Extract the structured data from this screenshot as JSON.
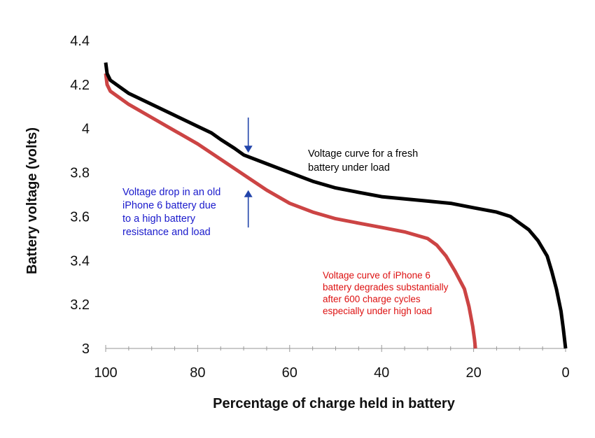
{
  "chart_data": {
    "type": "line",
    "title": "",
    "xlabel": "Percentage of charge held in battery",
    "ylabel": "Battery voltage (volts)",
    "xlim": [
      100,
      0
    ],
    "ylim": [
      3,
      4.4
    ],
    "x_ticks": [
      100,
      80,
      60,
      40,
      20,
      0
    ],
    "x_tick_labels": [
      "100",
      "80",
      "60",
      "40",
      "20",
      "0"
    ],
    "y_ticks": [
      3,
      3.2,
      3.4,
      3.6,
      3.8,
      4,
      4.2,
      4.4
    ],
    "y_tick_labels": [
      "3",
      "3.2",
      "3.4",
      "3.6",
      "3.8",
      "4",
      "4.2",
      "4.4"
    ],
    "grid": false,
    "series": [
      {
        "name": "Voltage curve for a fresh battery under load",
        "color": "#000000",
        "points": [
          [
            100,
            4.3
          ],
          [
            99.7,
            4.25
          ],
          [
            99,
            4.22
          ],
          [
            97,
            4.19
          ],
          [
            95,
            4.16
          ],
          [
            90,
            4.11
          ],
          [
            85,
            4.06
          ],
          [
            80,
            4.01
          ],
          [
            77,
            3.98
          ],
          [
            75,
            3.95
          ],
          [
            72,
            3.91
          ],
          [
            70,
            3.88
          ],
          [
            65,
            3.84
          ],
          [
            60,
            3.8
          ],
          [
            55,
            3.76
          ],
          [
            50,
            3.73
          ],
          [
            45,
            3.71
          ],
          [
            40,
            3.69
          ],
          [
            35,
            3.68
          ],
          [
            30,
            3.67
          ],
          [
            25,
            3.66
          ],
          [
            20,
            3.64
          ],
          [
            15,
            3.62
          ],
          [
            12,
            3.6
          ],
          [
            10,
            3.57
          ],
          [
            8,
            3.54
          ],
          [
            6,
            3.49
          ],
          [
            4,
            3.42
          ],
          [
            3,
            3.35
          ],
          [
            2,
            3.27
          ],
          [
            1,
            3.17
          ],
          [
            0.5,
            3.09
          ],
          [
            0,
            3.0
          ]
        ]
      },
      {
        "name": "Voltage curve of iPhone 6 battery degrades substantially after 600 charge cycles especially under high load",
        "color": "#cc4444",
        "points": [
          [
            100,
            4.25
          ],
          [
            99.7,
            4.2
          ],
          [
            99,
            4.17
          ],
          [
            97,
            4.14
          ],
          [
            95,
            4.11
          ],
          [
            90,
            4.05
          ],
          [
            85,
            3.99
          ],
          [
            80,
            3.93
          ],
          [
            75,
            3.86
          ],
          [
            70,
            3.79
          ],
          [
            65,
            3.72
          ],
          [
            60,
            3.66
          ],
          [
            55,
            3.62
          ],
          [
            50,
            3.59
          ],
          [
            45,
            3.57
          ],
          [
            40,
            3.55
          ],
          [
            35,
            3.53
          ],
          [
            30,
            3.5
          ],
          [
            28,
            3.47
          ],
          [
            26,
            3.42
          ],
          [
            24,
            3.35
          ],
          [
            22,
            3.27
          ],
          [
            21,
            3.19
          ],
          [
            20.2,
            3.1
          ],
          [
            19.8,
            3.04
          ],
          [
            19.6,
            3.0
          ]
        ]
      }
    ],
    "annotations": [
      {
        "text": "Voltage curve for a fresh battery under load",
        "lines": [
          "Voltage curve for a fresh",
          "battery under load"
        ],
        "color": "#000000"
      },
      {
        "text": "Voltage drop in an old iPhone 6 battery due to a high battery resistance and load",
        "lines": [
          "Voltage drop in an old",
          "iPhone 6 battery due",
          "to a high battery",
          "resistance and load"
        ],
        "color": "#1a1acc"
      },
      {
        "text": "Voltage curve of iPhone 6 battery degrades substantially after 600 charge cycles especially under high load",
        "lines": [
          "Voltage curve of iPhone 6",
          "battery degrades substantially",
          "after 600 charge cycles",
          "especially under high load"
        ],
        "color": "#dd1111"
      }
    ],
    "arrow_marker": {
      "x": 69,
      "from_top": 4.05,
      "to_top": 3.89,
      "from_bottom": 3.55,
      "to_bottom": 3.72,
      "color": "#2244aa"
    }
  }
}
